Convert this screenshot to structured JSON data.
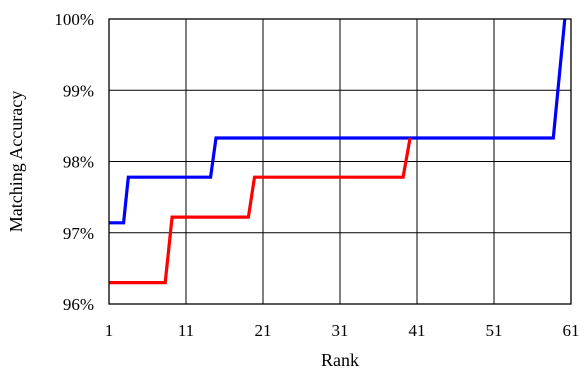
{
  "chart_data": {
    "type": "line",
    "xlabel": "Rank",
    "ylabel": "Matching Accuracy",
    "xlim": [
      1,
      61
    ],
    "ylim": [
      96,
      100
    ],
    "x_ticks": [
      1,
      11,
      21,
      31,
      41,
      51,
      61
    ],
    "x_tick_labels": [
      "1",
      "11",
      "21",
      "31",
      "41",
      "51",
      "61"
    ],
    "y_ticks": [
      96,
      97,
      98,
      99,
      100
    ],
    "y_tick_labels": [
      "96%",
      "97%",
      "98%",
      "99%",
      "100%"
    ],
    "grid": true,
    "legend": "none",
    "series": [
      {
        "color": "#0000ff",
        "points": [
          [
            1,
            97.14
          ],
          [
            2.9,
            97.14
          ],
          [
            3.5,
            97.78
          ],
          [
            14.2,
            97.78
          ],
          [
            14.9,
            98.33
          ],
          [
            58.7,
            98.33
          ],
          [
            60.2,
            100
          ]
        ]
      },
      {
        "color": "#ff0000",
        "points": [
          [
            1,
            96.3
          ],
          [
            8.3,
            96.3
          ],
          [
            9.2,
            97.22
          ],
          [
            19.1,
            97.22
          ],
          [
            19.9,
            97.78
          ],
          [
            39.2,
            97.78
          ],
          [
            40.1,
            98.33
          ]
        ]
      }
    ]
  }
}
